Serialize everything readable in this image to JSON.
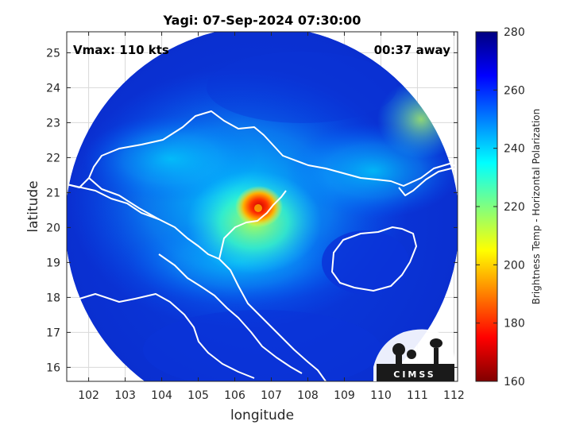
{
  "chart_data": {
    "type": "heatmap",
    "title": "Yagi: 07-Sep-2024 07:30:00",
    "annotations": {
      "vmax": "Vmax: 110 kts",
      "time_offset": "00:37 away"
    },
    "xlabel": "longitude",
    "ylabel": "latitude",
    "xlim": [
      101.4,
      112.1
    ],
    "ylim": [
      15.6,
      25.6
    ],
    "xticks": [
      "102",
      "103",
      "104",
      "105",
      "106",
      "107",
      "108",
      "109",
      "110",
      "111",
      "112"
    ],
    "yticks": [
      "16",
      "17",
      "18",
      "19",
      "20",
      "21",
      "22",
      "23",
      "24",
      "25"
    ],
    "grid": true,
    "colorbar": {
      "label": "Brightness Temp - Horizontal Polarization",
      "range": [
        160,
        280
      ],
      "ticks": [
        "160",
        "180",
        "200",
        "220",
        "240",
        "260",
        "280"
      ],
      "colormap": "jet"
    },
    "swath": {
      "center_lon": 106.75,
      "center_lat": 20.45,
      "radius_deg_lon": 5.4
    },
    "storm": {
      "name": "Yagi",
      "eye_lon": 106.7,
      "eye_lat": 20.6,
      "min_tb": 175
    },
    "logo": "CIMSS"
  }
}
